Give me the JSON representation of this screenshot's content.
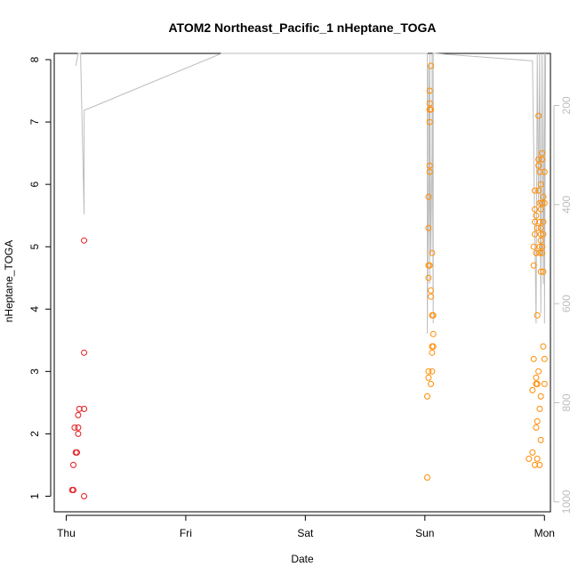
{
  "chart_data": {
    "type": "scatter",
    "title": "ATOM2 Northeast_Pacific_1 nHeptane_TOGA",
    "xlabel": "Date",
    "ylabel": "nHeptane_TOGA",
    "x_ticks": [
      "Thu",
      "Fri",
      "Sat",
      "Sun",
      "Mon"
    ],
    "x_units": "days since start of Thu",
    "xlim": [
      -0.1,
      4.05
    ],
    "ylim": [
      0.75,
      8.1
    ],
    "y_ticks": [
      1,
      2,
      3,
      4,
      5,
      6,
      7,
      8
    ],
    "y2_ticks": [
      200,
      400,
      600,
      800,
      1000
    ],
    "y2lim": [
      1020,
      95
    ],
    "y2_label": "",
    "grid": false,
    "colors": {
      "red": "#e41a1c",
      "orange": "#ff8c00",
      "gray_line": "#bdbdbd",
      "axis": "#000000"
    },
    "series": [
      {
        "color": "red",
        "points": [
          [
            0.05,
            1.1
          ],
          [
            0.06,
            1.1
          ],
          [
            0.06,
            1.5
          ],
          [
            0.07,
            2.1
          ],
          [
            0.08,
            1.7
          ],
          [
            0.09,
            1.7
          ],
          [
            0.1,
            2.0
          ],
          [
            0.1,
            2.1
          ],
          [
            0.1,
            2.3
          ],
          [
            0.11,
            2.4
          ],
          [
            0.15,
            1.0
          ],
          [
            0.15,
            2.4
          ],
          [
            0.15,
            3.3
          ],
          [
            0.15,
            5.1
          ]
        ]
      },
      {
        "color": "orange",
        "points": [
          [
            3.02,
            1.3
          ],
          [
            3.02,
            2.6
          ],
          [
            3.03,
            2.9
          ],
          [
            3.03,
            3.0
          ],
          [
            3.03,
            4.5
          ],
          [
            3.03,
            4.7
          ],
          [
            3.03,
            5.3
          ],
          [
            3.03,
            5.8
          ],
          [
            3.04,
            4.7
          ],
          [
            3.04,
            6.2
          ],
          [
            3.04,
            6.3
          ],
          [
            3.04,
            7.0
          ],
          [
            3.04,
            7.2
          ],
          [
            3.04,
            7.3
          ],
          [
            3.04,
            7.5
          ],
          [
            3.05,
            2.8
          ],
          [
            3.05,
            4.2
          ],
          [
            3.05,
            4.3
          ],
          [
            3.05,
            7.2
          ],
          [
            3.05,
            7.9
          ],
          [
            3.06,
            3.0
          ],
          [
            3.06,
            3.3
          ],
          [
            3.06,
            3.4
          ],
          [
            3.06,
            3.9
          ],
          [
            3.06,
            4.9
          ],
          [
            3.07,
            3.4
          ],
          [
            3.07,
            3.6
          ],
          [
            3.07,
            3.9
          ],
          [
            3.87,
            1.6
          ],
          [
            3.9,
            1.7
          ],
          [
            3.9,
            2.7
          ],
          [
            3.91,
            3.2
          ],
          [
            3.91,
            4.7
          ],
          [
            3.91,
            5.0
          ],
          [
            3.92,
            1.5
          ],
          [
            3.92,
            5.2
          ],
          [
            3.92,
            5.4
          ],
          [
            3.92,
            5.6
          ],
          [
            3.92,
            5.9
          ],
          [
            3.93,
            2.1
          ],
          [
            3.93,
            2.8
          ],
          [
            3.93,
            2.9
          ],
          [
            3.93,
            4.9
          ],
          [
            3.93,
            5.5
          ],
          [
            3.94,
            1.6
          ],
          [
            3.94,
            2.2
          ],
          [
            3.94,
            2.8
          ],
          [
            3.94,
            3.9
          ],
          [
            3.94,
            5.3
          ],
          [
            3.95,
            3.0
          ],
          [
            3.95,
            5.9
          ],
          [
            3.95,
            6.3
          ],
          [
            3.95,
            6.4
          ],
          [
            3.95,
            7.1
          ],
          [
            3.96,
            1.5
          ],
          [
            3.96,
            2.4
          ],
          [
            3.96,
            4.9
          ],
          [
            3.96,
            5.0
          ],
          [
            3.96,
            5.4
          ],
          [
            3.96,
            5.7
          ],
          [
            3.96,
            6.2
          ],
          [
            3.97,
            1.9
          ],
          [
            3.97,
            2.6
          ],
          [
            3.97,
            4.6
          ],
          [
            3.97,
            5.1
          ],
          [
            3.97,
            5.2
          ],
          [
            3.97,
            5.3
          ],
          [
            3.97,
            5.6
          ],
          [
            3.97,
            6.0
          ],
          [
            3.98,
            4.9
          ],
          [
            3.98,
            5.0
          ],
          [
            3.98,
            5.7
          ],
          [
            3.98,
            6.4
          ],
          [
            3.98,
            6.5
          ],
          [
            3.99,
            3.4
          ],
          [
            3.99,
            4.6
          ],
          [
            3.99,
            5.2
          ],
          [
            3.99,
            5.4
          ],
          [
            3.99,
            5.8
          ],
          [
            4.0,
            2.8
          ],
          [
            4.0,
            3.2
          ],
          [
            4.0,
            5.7
          ],
          [
            4.0,
            6.2
          ]
        ]
      }
    ],
    "secondary_line": {
      "color": "gray_line",
      "points": [
        [
          0.08,
          120
        ],
        [
          0.1,
          80
        ],
        [
          0.12,
          60
        ],
        [
          0.15,
          420
        ],
        [
          0.15,
          210
        ],
        [
          1.3,
          80
        ],
        [
          2.4,
          70
        ],
        [
          2.9,
          50
        ],
        [
          3.02,
          40
        ],
        [
          3.02,
          660
        ],
        [
          3.03,
          340
        ],
        [
          3.03,
          120
        ],
        [
          3.04,
          560
        ],
        [
          3.04,
          70
        ],
        [
          3.05,
          500
        ],
        [
          3.06,
          300
        ],
        [
          3.06,
          60
        ],
        [
          3.07,
          640
        ],
        [
          3.07,
          90
        ],
        [
          3.08,
          60
        ],
        [
          3.9,
          110
        ],
        [
          3.93,
          640
        ],
        [
          3.94,
          60
        ],
        [
          3.95,
          400
        ],
        [
          3.96,
          80
        ],
        [
          3.97,
          620
        ],
        [
          3.98,
          70
        ],
        [
          3.99,
          560
        ],
        [
          4.0,
          90
        ],
        [
          4.0,
          640
        ],
        [
          4.01,
          80
        ]
      ]
    }
  }
}
